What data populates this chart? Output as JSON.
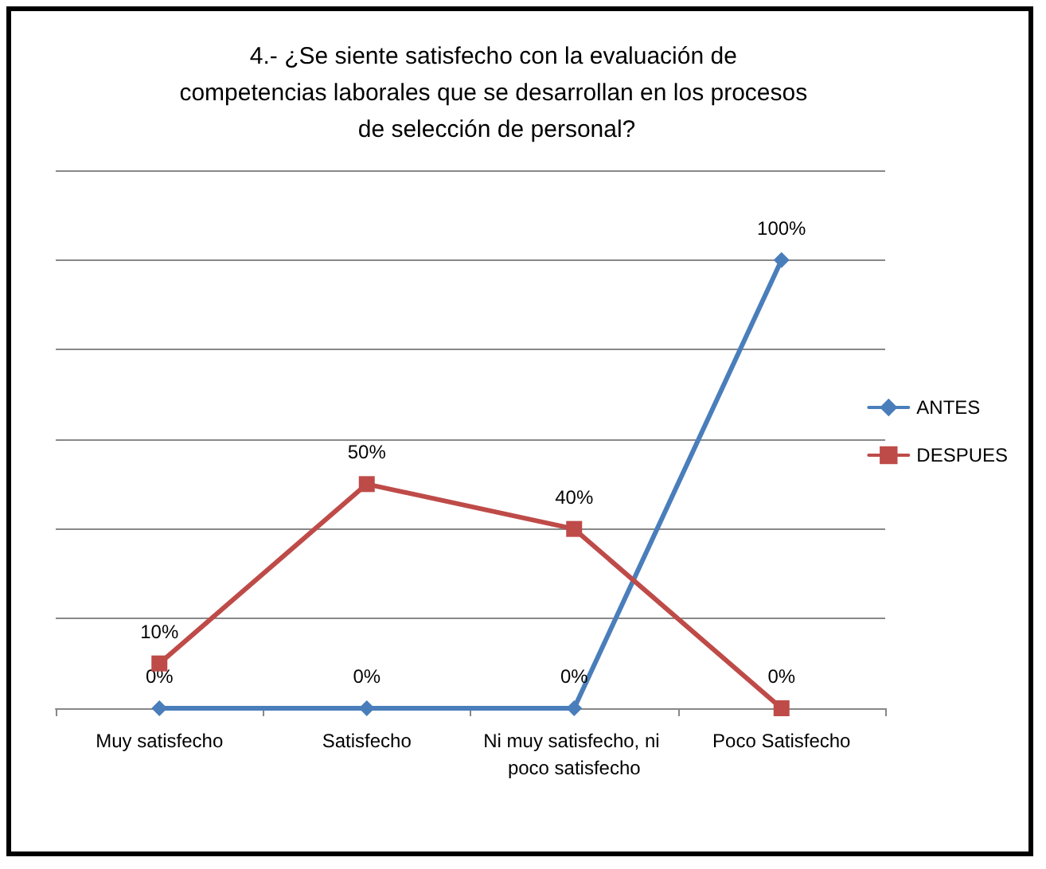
{
  "chart_data": {
    "type": "line",
    "title": "4.- ¿Se siente satisfecho con la evaluación de competencias laborales que se desarrollan en los procesos de selección de personal?",
    "categories": [
      "Muy satisfecho",
      "Satisfecho",
      "Ni muy satisfecho, ni poco satisfecho",
      "Poco Satisfecho"
    ],
    "series": [
      {
        "name": "ANTES",
        "color": "#4a7ebb",
        "marker": "diamond",
        "values": [
          0,
          0,
          0,
          100
        ],
        "value_labels": [
          "0%",
          "0%",
          "0%",
          "100%"
        ]
      },
      {
        "name": "DESPUES",
        "color": "#be4b48",
        "marker": "square",
        "values": [
          10,
          50,
          40,
          0
        ],
        "value_labels": [
          "10%",
          "50%",
          "40%",
          "0%"
        ]
      }
    ],
    "ylim": [
      0,
      120
    ],
    "yticks": [
      {
        "value": 0,
        "label": null
      },
      {
        "value": 20,
        "label": null
      },
      {
        "value": 40,
        "label": null
      },
      {
        "value": 60,
        "label": null
      },
      {
        "value": 80,
        "label": null
      },
      {
        "value": 100,
        "label": null
      },
      {
        "value": 120,
        "label": null
      }
    ],
    "tick_labels": "x",
    "grid": "y",
    "legend": "right",
    "line_style": "solid"
  }
}
